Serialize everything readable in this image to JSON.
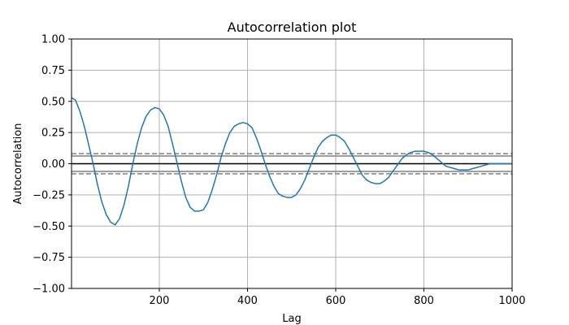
{
  "chart_data": {
    "type": "line",
    "title": "Autocorrelation plot",
    "xlabel": "Lag",
    "ylabel": "Autocorrelation",
    "xlim": [
      1,
      1000
    ],
    "ylim": [
      -1.0,
      1.0
    ],
    "grid": true,
    "x_ticks": [
      200,
      400,
      600,
      800,
      1000
    ],
    "x_tick_labels": [
      "200",
      "400",
      "600",
      "800",
      "1000"
    ],
    "y_ticks": [
      -1.0,
      -0.75,
      -0.5,
      -0.25,
      0.0,
      0.25,
      0.5,
      0.75,
      1.0
    ],
    "y_tick_labels": [
      "−1.00",
      "−0.75",
      "−0.50",
      "−0.25",
      "0.00",
      "0.25",
      "0.50",
      "0.75",
      "1.00"
    ],
    "reference_lines": {
      "zero": 0.0,
      "confidence_95": [
        0.062,
        -0.062
      ],
      "confidence_99": [
        0.081,
        -0.081
      ]
    },
    "series": [
      {
        "color": "#1f77b4",
        "x": [
          1,
          10,
          20,
          30,
          40,
          50,
          60,
          70,
          80,
          90,
          100,
          110,
          120,
          130,
          140,
          150,
          160,
          170,
          180,
          190,
          200,
          210,
          220,
          230,
          240,
          250,
          260,
          270,
          280,
          290,
          300,
          310,
          320,
          330,
          340,
          350,
          360,
          370,
          380,
          390,
          400,
          410,
          420,
          430,
          440,
          450,
          460,
          470,
          480,
          490,
          500,
          510,
          520,
          530,
          540,
          550,
          560,
          570,
          580,
          590,
          600,
          610,
          620,
          630,
          640,
          650,
          660,
          670,
          680,
          690,
          700,
          710,
          720,
          730,
          740,
          750,
          760,
          770,
          780,
          790,
          800,
          810,
          820,
          830,
          840,
          850,
          860,
          870,
          880,
          890,
          900,
          910,
          920,
          930,
          940,
          950,
          960,
          970,
          980,
          990,
          1000
        ],
        "y": [
          0.53,
          0.51,
          0.42,
          0.3,
          0.15,
          0.0,
          -0.17,
          -0.31,
          -0.41,
          -0.47,
          -0.49,
          -0.44,
          -0.33,
          -0.18,
          0.0,
          0.16,
          0.29,
          0.38,
          0.43,
          0.45,
          0.44,
          0.39,
          0.3,
          0.16,
          0.01,
          -0.14,
          -0.27,
          -0.35,
          -0.38,
          -0.38,
          -0.37,
          -0.31,
          -0.21,
          -0.09,
          0.05,
          0.16,
          0.25,
          0.3,
          0.32,
          0.33,
          0.32,
          0.29,
          0.21,
          0.11,
          0.0,
          -0.1,
          -0.18,
          -0.24,
          -0.26,
          -0.27,
          -0.27,
          -0.25,
          -0.2,
          -0.13,
          -0.04,
          0.05,
          0.13,
          0.18,
          0.21,
          0.23,
          0.23,
          0.21,
          0.18,
          0.12,
          0.05,
          -0.02,
          -0.09,
          -0.13,
          -0.15,
          -0.16,
          -0.16,
          -0.14,
          -0.11,
          -0.06,
          -0.01,
          0.04,
          0.07,
          0.09,
          0.1,
          0.1,
          0.1,
          0.09,
          0.07,
          0.04,
          0.01,
          -0.02,
          -0.03,
          -0.04,
          -0.05,
          -0.05,
          -0.05,
          -0.04,
          -0.03,
          -0.02,
          -0.01,
          0.0,
          0.0,
          0.0,
          0.0,
          0.0,
          0.0
        ]
      }
    ]
  }
}
